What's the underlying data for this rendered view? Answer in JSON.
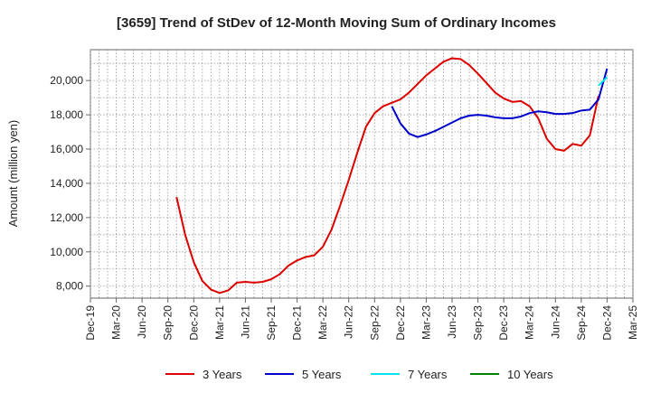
{
  "chart_data": {
    "type": "line",
    "title": "[3659]  Trend of StDev of 12-Month Moving Sum of Ordinary Incomes",
    "xlabel": "",
    "ylabel": "Amount (million yen)",
    "x_tick_labels": [
      "Dec-19",
      "Mar-20",
      "Jun-20",
      "Sep-20",
      "Dec-20",
      "Mar-21",
      "Jun-21",
      "Sep-21",
      "Dec-21",
      "Mar-22",
      "Jun-22",
      "Sep-22",
      "Dec-22",
      "Mar-23",
      "Jun-23",
      "Sep-23",
      "Dec-23",
      "Mar-24",
      "Jun-24",
      "Sep-24",
      "Dec-24",
      "Mar-25"
    ],
    "y_ticks": [
      8000,
      10000,
      12000,
      14000,
      16000,
      18000,
      20000
    ],
    "y_tick_labels": [
      "8,000",
      "10,000",
      "12,000",
      "14,000",
      "16,000",
      "18,000",
      "20,000"
    ],
    "ylim": [
      7300,
      21800
    ],
    "grid": true,
    "legend_position": "bottom",
    "series": [
      {
        "name": "3 Years",
        "color": "#dd0000",
        "start": "Oct-20",
        "values": [
          13200,
          11000,
          9400,
          8300,
          7800,
          7600,
          7750,
          8200,
          8250,
          8200,
          8250,
          8400,
          8700,
          9200,
          9500,
          9700,
          9800,
          10300,
          11300,
          12700,
          14200,
          15800,
          17300,
          18100,
          18500,
          18700,
          18900,
          19300,
          19800,
          20300,
          20700,
          21100,
          21300,
          21250,
          20900,
          20400,
          19850,
          19300,
          18950,
          18750,
          18800,
          18500,
          17800,
          16600,
          16000,
          15900,
          16300,
          16200,
          16800,
          19100
        ]
      },
      {
        "name": "5 Years",
        "color": "#0000cc",
        "start": "Nov-22",
        "values": [
          18500,
          17500,
          16900,
          16700,
          16850,
          17050,
          17300,
          17550,
          17800,
          17950,
          18000,
          17950,
          17850,
          17800,
          17800,
          17900,
          18100,
          18200,
          18150,
          18050,
          18050,
          18100,
          18250,
          18300,
          18900,
          20700
        ]
      },
      {
        "name": "7 Years",
        "color": "#00e5ee",
        "start": "Nov-24",
        "values": [
          19700,
          20200
        ]
      },
      {
        "name": "10 Years",
        "color": "#008000",
        "start": "",
        "values": []
      }
    ]
  }
}
